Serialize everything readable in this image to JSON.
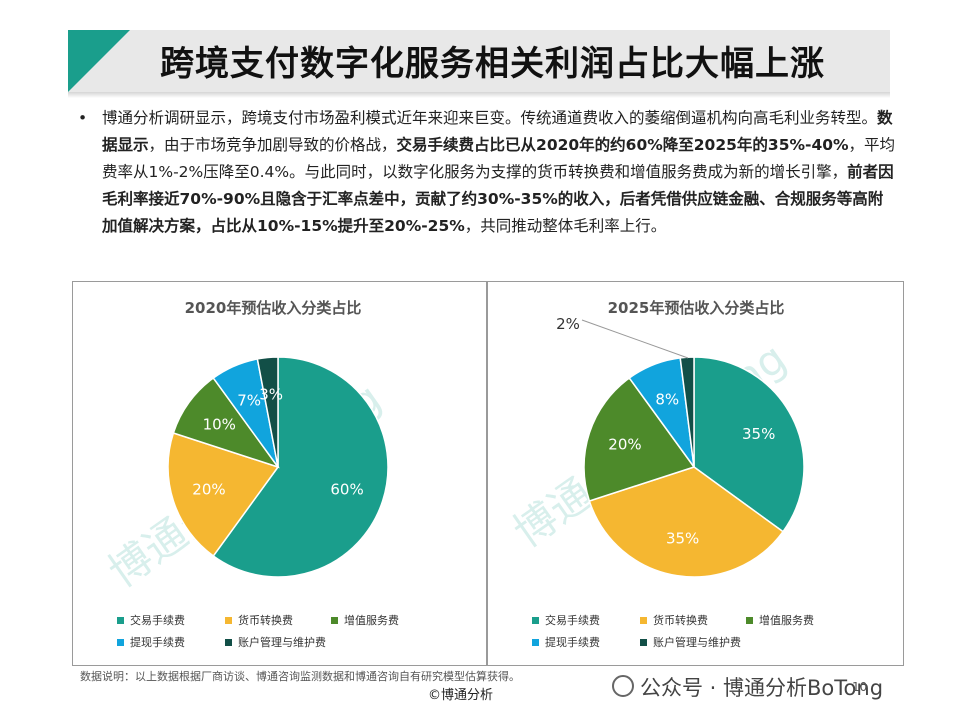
{
  "header": {
    "title": "跨境支付数字化服务相关利润占比大幅上涨"
  },
  "intro": {
    "bullet": "•",
    "segments": [
      {
        "text": "博通分析调研显示，跨境支付市场盈利模式近年来迎来巨变。传统通道费收入的萎缩倒逼机构向高毛利业务转型。",
        "bold": false
      },
      {
        "text": "数据显示",
        "bold": true
      },
      {
        "text": "，由于市场竞争加剧导致的价格战，",
        "bold": false
      },
      {
        "text": "交易手续费占比已从2020年的约60%降至2025年的35%-40%",
        "bold": true
      },
      {
        "text": "，平均费率从1%-2%压降至0.4%。与此同时，以数字化服务为支撑的货币转换费和增值服务费成为新的增长引擎，",
        "bold": false
      },
      {
        "text": "前者因毛利率接近70%-90%且隐含于汇率点差中，贡献了约30%-35%的收入，后者凭借供应链金融、合规服务等高附加值解决方案，占比从10%-15%提升至20%-25%",
        "bold": true
      },
      {
        "text": "，共同推动整体毛利率上行。",
        "bold": false
      }
    ]
  },
  "colors": {
    "交易手续费": "#1a9e8c",
    "货币转换费": "#f5b731",
    "增值服务费": "#4d8a2a",
    "提现手续费": "#11a4dd",
    "账户管理与维护费": "#124f47",
    "banner_accent": "#1a9e8c"
  },
  "chart_data": [
    {
      "type": "pie",
      "title": "2020年预估收入分类占比",
      "categories": [
        "交易手续费",
        "货币转换费",
        "增值服务费",
        "提现手续费",
        "账户管理与维护费"
      ],
      "values": [
        60,
        20,
        10,
        7,
        3
      ],
      "labels": [
        "60%",
        "20%",
        "10%",
        "7%",
        "3%"
      ],
      "legend_position": "bottom"
    },
    {
      "type": "pie",
      "title": "2025年预估收入分类占比",
      "categories": [
        "交易手续费",
        "货币转换费",
        "增值服务费",
        "提现手续费",
        "账户管理与维护费"
      ],
      "values": [
        35,
        35,
        20,
        8,
        2
      ],
      "labels": [
        "35%",
        "35%",
        "20%",
        "8%",
        "2%"
      ],
      "legend_position": "bottom"
    }
  ],
  "watermark": {
    "text": "博通分析BoTong"
  },
  "footer": {
    "note": "数据说明：以上数据根据厂商访谈、博通咨询监测数据和博通咨询自有研究模型估算获得。",
    "copyright": "©博通分析",
    "wechat": "公众号 · 博通分析BoTong",
    "page": "10"
  }
}
